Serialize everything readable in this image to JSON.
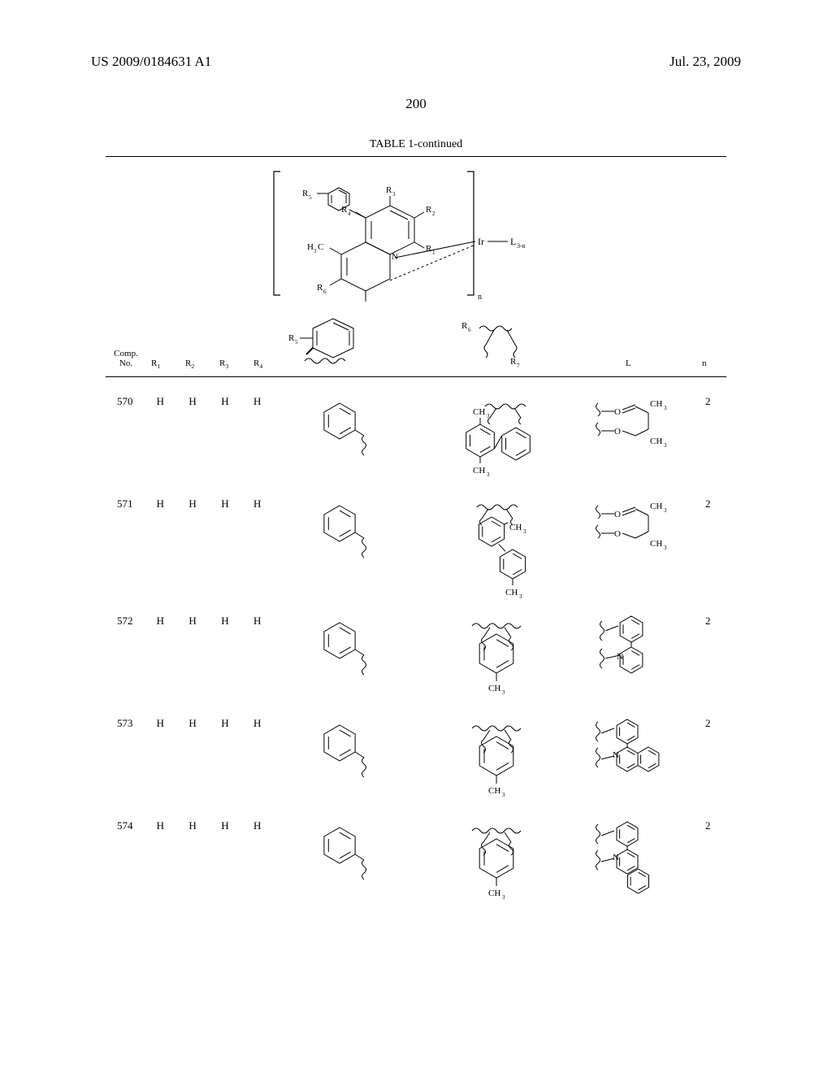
{
  "header": {
    "publication_number": "US 2009/0184631 A1",
    "publication_date": "Jul. 23, 2009",
    "page_number": "200"
  },
  "table": {
    "caption": "TABLE 1-continued",
    "column_headers": {
      "comp_no": "Comp.\nNo.",
      "r1": "R₁",
      "r2": "R₂",
      "r3": "R₃",
      "r4": "R₄",
      "l": "L",
      "n": "n"
    },
    "structure_labels": {
      "r1": "R₁",
      "r2": "R₂",
      "r3": "R₃",
      "r4": "R₄",
      "r5": "R₅",
      "r6": "R₆",
      "r7": "R₇",
      "h3c": "H₃C",
      "n": "N",
      "ir": "Ir",
      "l3n": "L₃₋ₙ",
      "bracket_n": "n",
      "ch3": "CH₃",
      "o": "O"
    },
    "rows": [
      {
        "comp_no": "570",
        "r1": "H",
        "r2": "H",
        "r3": "H",
        "r4": "H",
        "r5_type": "phenyl",
        "r67_type": "biphenyl_2ch3",
        "l_type": "acac",
        "n": "2"
      },
      {
        "comp_no": "571",
        "r1": "H",
        "r2": "H",
        "r3": "H",
        "r4": "H",
        "r5_type": "phenyl",
        "r67_type": "biphenyl_para_ch3",
        "l_type": "acac",
        "n": "2"
      },
      {
        "comp_no": "572",
        "r1": "H",
        "r2": "H",
        "r3": "H",
        "r4": "H",
        "r5_type": "phenyl",
        "r67_type": "tolyl",
        "l_type": "ppy",
        "n": "2"
      },
      {
        "comp_no": "573",
        "r1": "H",
        "r2": "H",
        "r3": "H",
        "r4": "H",
        "r5_type": "phenyl",
        "r67_type": "tolyl",
        "l_type": "phenylquinoline",
        "n": "2"
      },
      {
        "comp_no": "574",
        "r1": "H",
        "r2": "H",
        "r3": "H",
        "r4": "H",
        "r5_type": "phenyl",
        "r67_type": "tolyl",
        "l_type": "phenylisoquinoline",
        "n": "2"
      }
    ]
  },
  "style": {
    "line_color": "#000000",
    "line_width": 1,
    "font_family": "Times New Roman"
  }
}
